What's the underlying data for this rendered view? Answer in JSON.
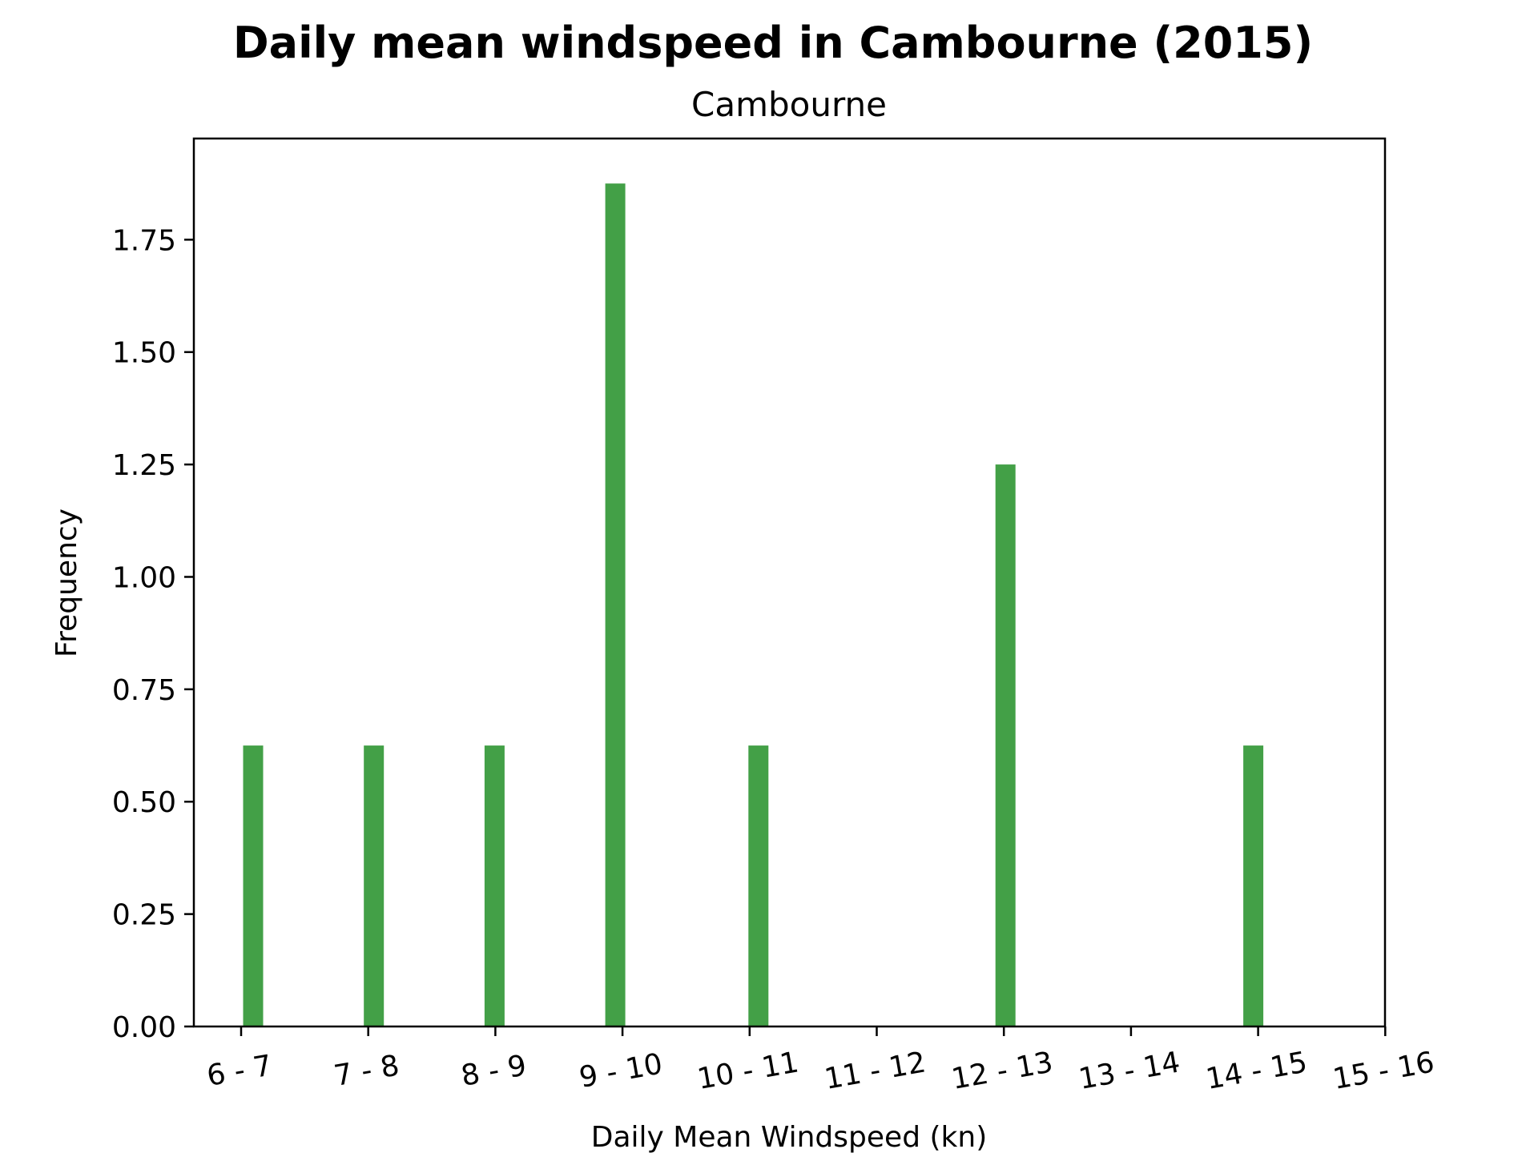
{
  "chart_data": {
    "type": "bar",
    "title": "Daily mean windspeed in Cambourne (2015)",
    "subtitle": "Cambourne",
    "xlabel": "Daily Mean Windspeed (kn)",
    "ylabel": "Frequency",
    "categories": [
      "6 - 7",
      "7 - 8",
      "8 - 9",
      "9 - 10",
      "10 - 11",
      "11 - 12",
      "12 - 13",
      "13 - 14",
      "14 - 15",
      "15 - 16"
    ],
    "values": [
      0.625,
      0.625,
      0.625,
      1.875,
      0.625,
      0,
      1.25,
      0,
      0.625,
      0
    ],
    "ylim": [
      0,
      1.975
    ],
    "yticks": [
      "0.00",
      "0.25",
      "0.50",
      "0.75",
      "1.00",
      "1.25",
      "1.50",
      "1.75"
    ],
    "bar_color": "#43a047",
    "grid": false,
    "legend": "none"
  }
}
